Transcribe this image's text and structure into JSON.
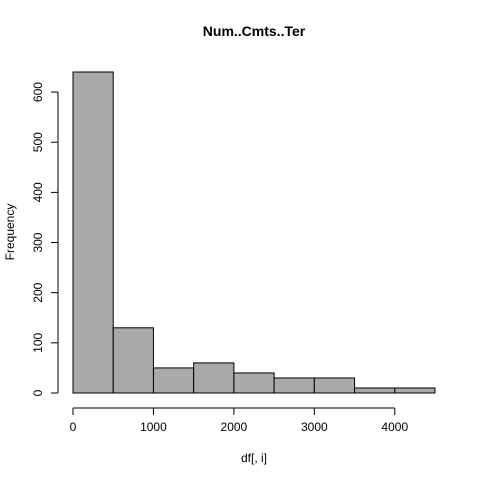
{
  "chart_data": {
    "type": "bar",
    "title": "Num..Cmts..Ter",
    "xlabel": "df[, i]",
    "ylabel": "Frequency",
    "bins": [
      {
        "from": 0,
        "to": 500,
        "value": 640
      },
      {
        "from": 500,
        "to": 1000,
        "value": 130
      },
      {
        "from": 1000,
        "to": 1500,
        "value": 50
      },
      {
        "from": 1500,
        "to": 2000,
        "value": 60
      },
      {
        "from": 2000,
        "to": 2500,
        "value": 40
      },
      {
        "from": 2500,
        "to": 3000,
        "value": 30
      },
      {
        "from": 3000,
        "to": 3500,
        "value": 30
      },
      {
        "from": 3500,
        "to": 4000,
        "value": 10
      },
      {
        "from": 4000,
        "to": 4500,
        "value": 10
      }
    ],
    "xlim": [
      0,
      4500
    ],
    "ylim": [
      0,
      640
    ],
    "xticks": [
      0,
      1000,
      2000,
      3000,
      4000
    ],
    "yticks": [
      0,
      100,
      200,
      300,
      400,
      500,
      600
    ],
    "grid": false,
    "bar_color": "#a9a9a9"
  }
}
